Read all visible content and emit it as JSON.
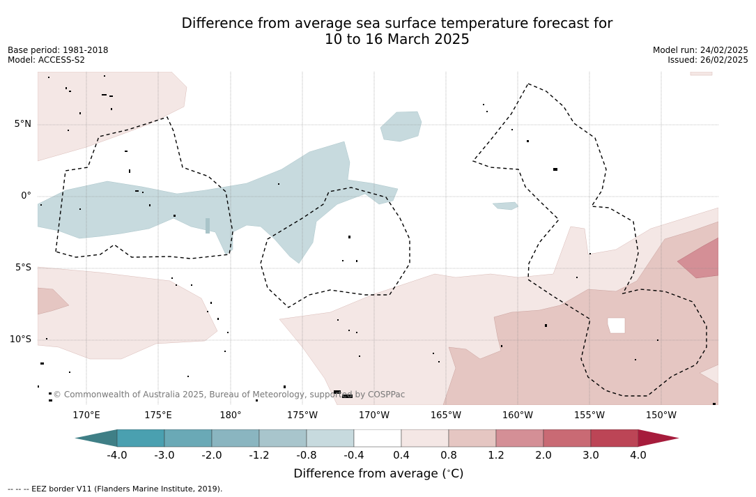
{
  "title": {
    "line1": "Difference from average sea surface temperature forecast for",
    "line2": "10 to 16 March 2025"
  },
  "meta_left": {
    "base_period": "Base period: 1981-2018",
    "model": "Model: ACCESS-S2"
  },
  "meta_right": {
    "model_run": "Model run: 24/02/2025",
    "issued": "Issued: 26/02/2025"
  },
  "map": {
    "lon_ticks": [
      "170°E",
      "175°E",
      "180°",
      "175°W",
      "170°W",
      "165°W",
      "160°W",
      "155°W",
      "150°W"
    ],
    "lat_ticks": [
      "5°N",
      "0°",
      "5°S",
      "10°S"
    ],
    "copyright": "© Commonwealth of Australia 2025, Bureau of Meteorology, supported by COSPPac",
    "colors": {
      "cool_light": "#c7dade",
      "warm_light": "#f4e7e5",
      "warm_mid": "#e5c6c2",
      "warm_strong": "#d48f96",
      "eez_line": "#000000",
      "grid": "#999999"
    }
  },
  "colorbar": {
    "label": "Difference from average ($^\\circ$C)",
    "label_text": "Difference from average (",
    "label_unit": "C)",
    "ticks": [
      "-4.0",
      "-3.0",
      "-2.0",
      "-1.2",
      "-0.8",
      "-0.4",
      "0.4",
      "0.8",
      "1.2",
      "2.0",
      "3.0",
      "4.0"
    ],
    "colors": [
      "#3f7f86",
      "#4aa0b0",
      "#6aa9b6",
      "#8ab5c0",
      "#a8c5cc",
      "#c7dade",
      "#ffffff",
      "#f4e7e5",
      "#e5c6c2",
      "#d48f96",
      "#c96a74",
      "#bc4556",
      "#a61c3c"
    ]
  },
  "footer": "--  --  -- EEZ border V11 (Flanders Marine Institute, 2019)."
}
